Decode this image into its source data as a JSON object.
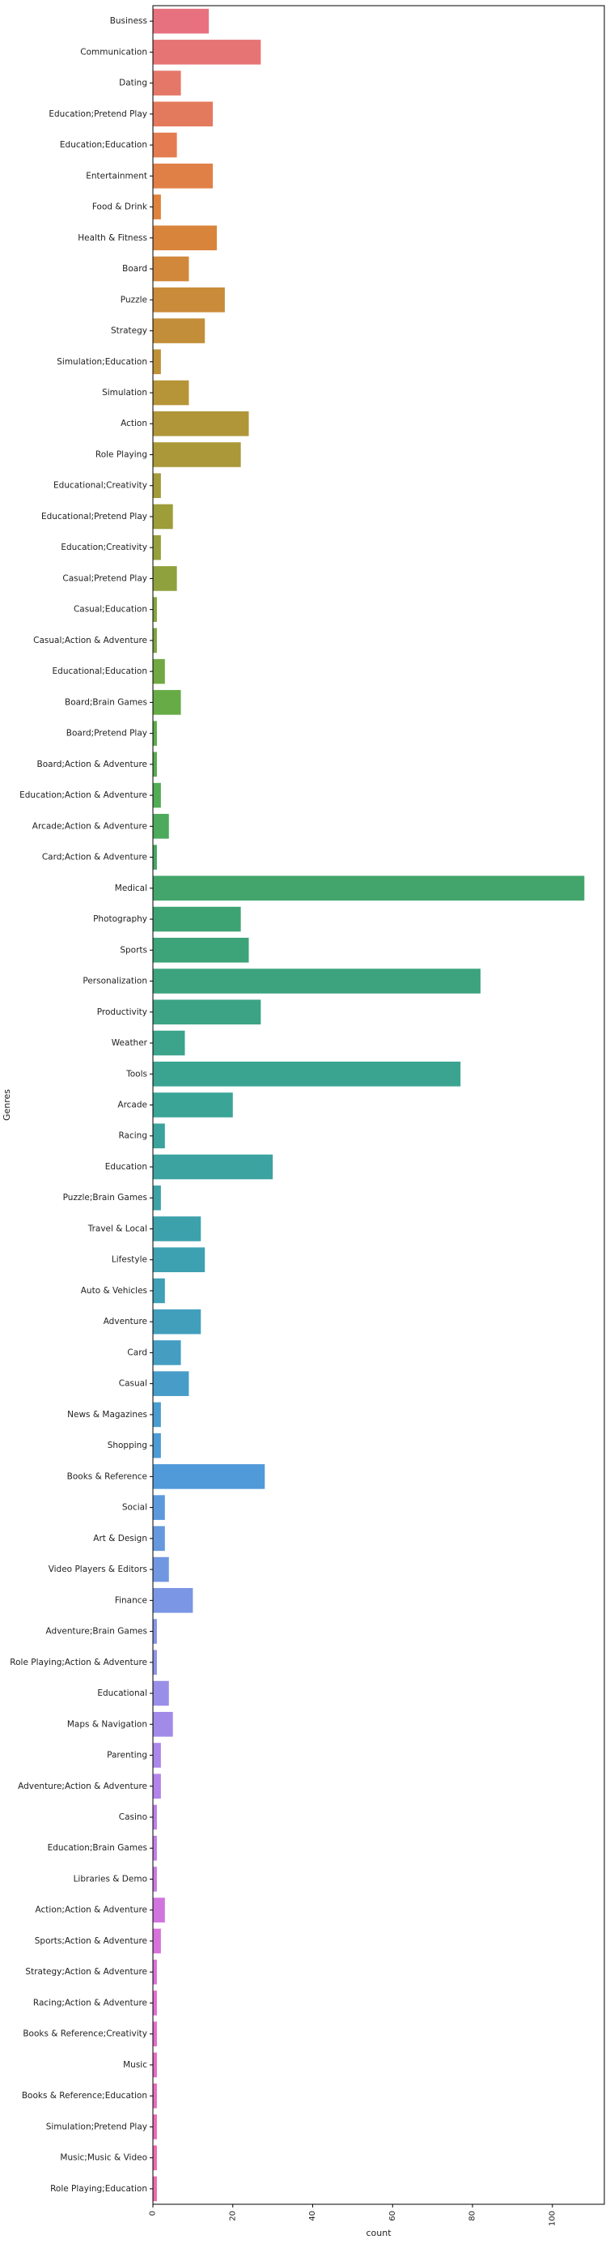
{
  "chart_data": {
    "type": "bar",
    "orientation": "horizontal",
    "xlabel": "count",
    "ylabel": "Genres",
    "xlim": [
      0,
      113
    ],
    "xticks": [
      0,
      20,
      40,
      60,
      80,
      100
    ],
    "grid": false,
    "categories": [
      "Business",
      "Communication",
      "Dating",
      "Education;Pretend Play",
      "Education;Education",
      "Entertainment",
      "Food & Drink",
      "Health & Fitness",
      "Board",
      "Puzzle",
      "Strategy",
      "Simulation;Education",
      "Simulation",
      "Action",
      "Role Playing",
      "Educational;Creativity",
      "Educational;Pretend Play",
      "Education;Creativity",
      "Casual;Pretend Play",
      "Casual;Education",
      "Casual;Action & Adventure",
      "Educational;Education",
      "Board;Brain Games",
      "Board;Pretend Play",
      "Board;Action & Adventure",
      "Education;Action & Adventure",
      "Arcade;Action & Adventure",
      "Card;Action & Adventure",
      "Medical",
      "Photography",
      "Sports",
      "Personalization",
      "Productivity",
      "Weather",
      "Tools",
      "Arcade",
      "Racing",
      "Education",
      "Puzzle;Brain Games",
      "Travel & Local",
      "Lifestyle",
      "Auto & Vehicles",
      "Adventure",
      "Card",
      "Casual",
      "News & Magazines",
      "Shopping",
      "Books & Reference",
      "Social",
      "Art & Design",
      "Video Players & Editors",
      "Finance",
      "Adventure;Brain Games",
      "Role Playing;Action & Adventure",
      "Educational",
      "Maps & Navigation",
      "Parenting",
      "Adventure;Action & Adventure",
      "Casino",
      "Education;Brain Games",
      "Libraries & Demo",
      "Action;Action & Adventure",
      "Sports;Action & Adventure",
      "Strategy;Action & Adventure",
      "Racing;Action & Adventure",
      "Books & Reference;Creativity",
      "Music",
      "Books & Reference;Education",
      "Simulation;Pretend Play",
      "Music;Music & Video",
      "Role Playing;Education"
    ],
    "values": [
      14,
      27,
      7,
      15,
      6,
      15,
      2,
      16,
      9,
      18,
      13,
      2,
      9,
      24,
      22,
      2,
      5,
      2,
      6,
      1,
      1,
      3,
      7,
      1,
      1,
      2,
      4,
      1,
      108,
      22,
      24,
      82,
      27,
      8,
      77,
      20,
      3,
      30,
      2,
      12,
      13,
      3,
      12,
      7,
      9,
      2,
      2,
      28,
      3,
      3,
      4,
      10,
      1,
      1,
      4,
      5,
      2,
      2,
      1,
      1,
      1,
      3,
      2,
      1,
      1,
      1,
      1,
      1,
      1,
      1,
      1
    ],
    "palette": [
      "#e8717f",
      "#e0823c",
      "#b89338",
      "#94a03b",
      "#5aae49",
      "#3da373",
      "#3aa497",
      "#3fa0b5",
      "#4e9ad8",
      "#8b94e8",
      "#c07ee9",
      "#e56bd2",
      "#f06aa9"
    ]
  }
}
